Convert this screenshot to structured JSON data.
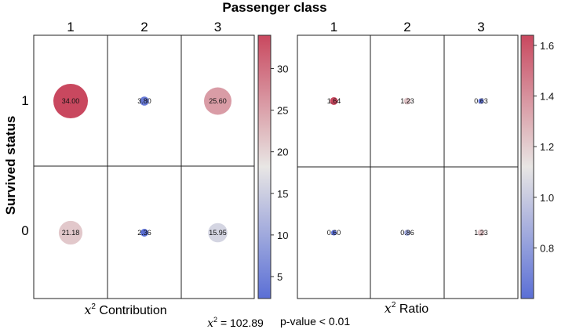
{
  "chart_data": {
    "type": "heatmap",
    "title": "Passenger class",
    "ylabel": "Survived status",
    "columns": [
      "1",
      "2",
      "3"
    ],
    "rows": [
      "1",
      "0"
    ],
    "panels": [
      {
        "name": "contribution",
        "xlabel_italic": "x",
        "xlabel_sup": "2",
        "xlabel_rest": " Contribution",
        "values": [
          [
            34.0,
            3.8,
            25.6
          ],
          [
            21.18,
            2.36,
            15.95
          ]
        ],
        "labels": [
          [
            "34.00",
            "3.80",
            "25.60"
          ],
          [
            "21.18",
            "2.36",
            "15.95"
          ]
        ],
        "colorbar": {
          "min": 2.36,
          "max": 34.0,
          "ticks": [
            5,
            10,
            15,
            20,
            25,
            30
          ]
        }
      },
      {
        "name": "ratio",
        "xlabel_italic": "x",
        "xlabel_sup": "2",
        "xlabel_rest": " Ratio",
        "values": [
          [
            1.64,
            1.23,
            0.63
          ],
          [
            0.6,
            0.86,
            1.23
          ]
        ],
        "labels": [
          [
            "1.64",
            "1.23",
            "0.63"
          ],
          [
            "0.60",
            "0.86",
            "1.23"
          ]
        ],
        "colorbar": {
          "min": 0.6,
          "max": 1.64,
          "ticks": [
            "0.8",
            "1.0",
            "1.2",
            "1.4",
            "1.6"
          ],
          "tick_values": [
            0.8,
            1.0,
            1.2,
            1.4,
            1.6
          ]
        }
      }
    ],
    "stats": {
      "chi2_italic": "x",
      "chi2_sup": "2",
      "chi2_rest": " = 102.89",
      "pvalue": "p-value < 0.01"
    },
    "colormap": {
      "low": "#5b6fd6",
      "mid": "#e8e6e4",
      "high": "#c9485f"
    }
  }
}
